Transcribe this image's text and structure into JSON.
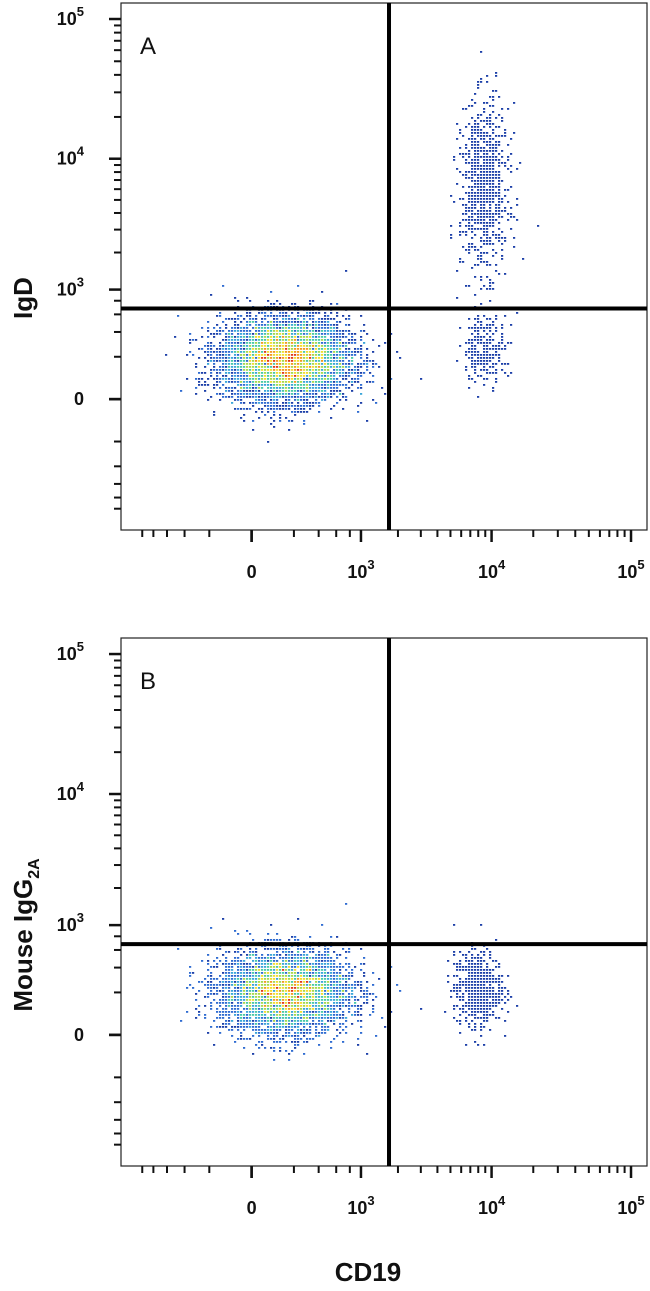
{
  "chart_data": [
    {
      "type": "scatter",
      "panel_label": "A",
      "xlabel": "",
      "ylabel": "IgD",
      "x_scale": "logicle",
      "y_scale": "logicle",
      "x_ticks": [
        {
          "base": "0",
          "exp": ""
        },
        {
          "base": "10",
          "exp": "3"
        },
        {
          "base": "10",
          "exp": "4"
        },
        {
          "base": "10",
          "exp": "5"
        }
      ],
      "y_ticks": [
        {
          "base": "0",
          "exp": ""
        },
        {
          "base": "10",
          "exp": "3"
        },
        {
          "base": "10",
          "exp": "4"
        },
        {
          "base": "10",
          "exp": "5"
        }
      ],
      "quadrant_gate": {
        "x": 1700,
        "y": 680
      },
      "populations": [
        {
          "center": [
            150,
            180
          ],
          "spread": [
            550,
            320
          ],
          "events": 8000,
          "density_coloured": true
        },
        {
          "center": [
            9000,
            6000
          ],
          "spread": [
            "4000",
            "15000"
          ],
          "events": 850,
          "density_coloured": false
        },
        {
          "center": [
            9000,
            250
          ],
          "spread": [
            "3500",
            300
          ],
          "events": 260,
          "density_coloured": false
        }
      ],
      "density_colors": [
        "#1c3fa8",
        "#2e6bd1",
        "#3aa6d9",
        "#49c9a6",
        "#a6d94d",
        "#f2dd2e",
        "#f29a1f",
        "#e03a1c"
      ]
    },
    {
      "type": "scatter",
      "panel_label": "B",
      "xlabel": "CD19",
      "ylabel": "Mouse IgG",
      "ylabel_sub": "2A",
      "x_scale": "logicle",
      "y_scale": "logicle",
      "x_ticks": [
        {
          "base": "0",
          "exp": ""
        },
        {
          "base": "10",
          "exp": "3"
        },
        {
          "base": "10",
          "exp": "4"
        },
        {
          "base": "10",
          "exp": "5"
        }
      ],
      "y_ticks": [
        {
          "base": "0",
          "exp": ""
        },
        {
          "base": "10",
          "exp": "3"
        },
        {
          "base": "10",
          "exp": "4"
        },
        {
          "base": "10",
          "exp": "5"
        }
      ],
      "quadrant_gate": {
        "x": 1700,
        "y": 680
      },
      "populations": [
        {
          "center": [
            150,
            200
          ],
          "spread": [
            550,
            330
          ],
          "events": 8500,
          "density_coloured": true
        },
        {
          "center": [
            8000,
            220
          ],
          "spread": [
            "3500",
            300
          ],
          "events": 650,
          "density_coloured": false
        }
      ],
      "density_colors": [
        "#1c3fa8",
        "#2e6bd1",
        "#3aa6d9",
        "#49c9a6",
        "#a6d94d",
        "#f2dd2e",
        "#f29a1f",
        "#e03a1c"
      ]
    }
  ]
}
